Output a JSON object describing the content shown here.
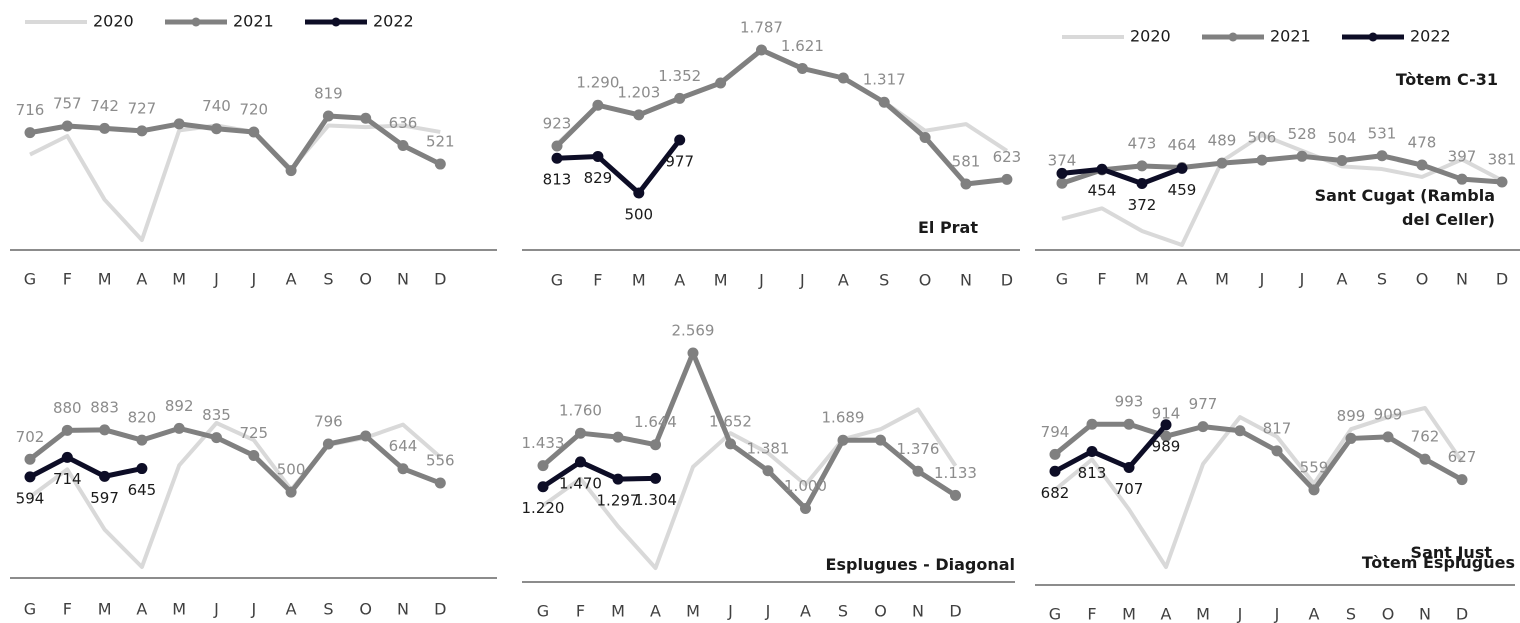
{
  "chart_data": [
    {
      "type": "line",
      "title": "Sant Cugat (Rambla del Celler)",
      "legend": true,
      "categories": [
        "G",
        "F",
        "M",
        "A",
        "M",
        "J",
        "J",
        "A",
        "S",
        "O",
        "N",
        "D"
      ],
      "series": [
        {
          "name": "2020",
          "color": "#d9d9d9",
          "values": [
            580,
            695,
            300,
            50,
            730,
            760,
            720,
            490,
            760,
            750,
            760,
            720
          ]
        },
        {
          "name": "2021",
          "color": "#808080",
          "values": [
            716,
            757,
            742,
            727,
            770,
            740,
            720,
            480,
            819,
            805,
            636,
            521
          ],
          "value_labels": [
            "716",
            "757",
            "742",
            "727",
            null,
            "740",
            "720",
            null,
            "819",
            null,
            "636",
            "521"
          ]
        },
        {
          "name": "2022",
          "color": "#0d0d26",
          "values": [
            null,
            null,
            null,
            null,
            null,
            null,
            null,
            null,
            null,
            null,
            null,
            null
          ]
        }
      ]
    },
    {
      "type": "line",
      "title": "El Prat",
      "legend": false,
      "categories": [
        "G",
        "F",
        "M",
        "A",
        "M",
        "J",
        "J",
        "A",
        "S",
        "O",
        "N",
        "D"
      ],
      "series": [
        {
          "name": "2020",
          "color": "#d9d9d9",
          "values": [
            940,
            1290,
            1200,
            1350,
            1490,
            1787,
            1621,
            1535,
            1320,
            1060,
            1120,
            880
          ]
        },
        {
          "name": "2021",
          "color": "#808080",
          "values": [
            923,
            1290,
            1203,
            1352,
            1490,
            1787,
            1621,
            1535,
            1317,
            1000,
            581,
            623
          ],
          "value_labels": [
            "923",
            "1.290",
            "1.203",
            "1.352",
            null,
            "1.787",
            "1.621",
            null,
            "1.317",
            null,
            "581",
            "623"
          ]
        },
        {
          "name": "2022",
          "color": "#0d0d26",
          "values": [
            813,
            829,
            500,
            977,
            null,
            null,
            null,
            null,
            null,
            null,
            null,
            null
          ],
          "value_labels": [
            "813",
            "829",
            "500",
            "977",
            null,
            null,
            null,
            null,
            null,
            null,
            null,
            null
          ]
        }
      ]
    },
    {
      "type": "line",
      "title": "Tòtem C-31",
      "legend": true,
      "categories": [
        "G",
        "F",
        "M",
        "A",
        "M",
        "J",
        "J",
        "A",
        "S",
        "O",
        "N",
        "D"
      ],
      "series": [
        {
          "name": "2020",
          "color": "#d9d9d9",
          "values": [
            170,
            230,
            100,
            20,
            500,
            650,
            560,
            470,
            455,
            410,
            510,
            390
          ]
        },
        {
          "name": "2021",
          "color": "#808080",
          "values": [
            374,
            450,
            473,
            464,
            489,
            506,
            528,
            504,
            531,
            478,
            397,
            381
          ],
          "value_labels": [
            "374",
            null,
            "473",
            "464",
            "489",
            "506",
            "528",
            "504",
            "531",
            "478",
            "397",
            "381"
          ]
        },
        {
          "name": "2022",
          "color": "#0d0d26",
          "values": [
            430,
            454,
            372,
            459,
            null,
            null,
            null,
            null,
            null,
            null,
            null,
            null
          ],
          "value_labels": [
            null,
            "454",
            "372",
            "459",
            null,
            null,
            null,
            null,
            null,
            null,
            null,
            null
          ]
        }
      ]
    },
    {
      "type": "line",
      "title": "Sant Just",
      "legend": false,
      "categories": [
        "G",
        "F",
        "M",
        "A",
        "M",
        "J",
        "J",
        "A",
        "S",
        "O",
        "N",
        "D"
      ],
      "series": [
        {
          "name": "2020",
          "color": "#d9d9d9",
          "values": [
            470,
            640,
            270,
            40,
            665,
            925,
            820,
            515,
            790,
            835,
            915,
            715
          ]
        },
        {
          "name": "2021",
          "color": "#808080",
          "values": [
            702,
            880,
            883,
            820,
            892,
            835,
            725,
            500,
            796,
            845,
            644,
            556
          ],
          "value_labels": [
            "702",
            "880",
            "883",
            "820",
            "892",
            "835",
            "725",
            "500",
            "796",
            null,
            "644",
            "556"
          ]
        },
        {
          "name": "2022",
          "color": "#0d0d26",
          "values": [
            594,
            714,
            597,
            645,
            null,
            null,
            null,
            null,
            null,
            null,
            null,
            null
          ],
          "value_labels": [
            "594",
            "714",
            "597",
            "645",
            null,
            null,
            null,
            null,
            null,
            null,
            null,
            null
          ]
        }
      ]
    },
    {
      "type": "line",
      "title": "Esplugues - Diagonal",
      "legend": false,
      "categories": [
        "G",
        "F",
        "M",
        "A",
        "M",
        "J",
        "J",
        "A",
        "S",
        "O",
        "N",
        "D"
      ],
      "series": [
        {
          "name": "2020",
          "color": "#d9d9d9",
          "values": [
            1030,
            1300,
            820,
            400,
            1420,
            1760,
            1560,
            1240,
            1700,
            1800,
            2000,
            1430
          ]
        },
        {
          "name": "2021",
          "color": "#808080",
          "values": [
            1433,
            1760,
            1720,
            1644,
            2569,
            1652,
            1381,
            1000,
            1689,
            1690,
            1376,
            1133
          ],
          "value_labels": [
            "1.433",
            "1.760",
            null,
            "1.644",
            "2.569",
            "1.652",
            "1.381",
            "1.000",
            "1.689",
            null,
            "1.376",
            "1.133"
          ]
        },
        {
          "name": "2022",
          "color": "#0d0d26",
          "values": [
            1220,
            1470,
            1297,
            1304,
            null,
            null,
            null,
            null,
            null,
            null,
            null,
            null
          ],
          "value_labels": [
            "1.220",
            "1.470",
            "1.297",
            "1.304",
            null,
            null,
            null,
            null,
            null,
            null,
            null,
            null
          ]
        }
      ]
    },
    {
      "type": "line",
      "title": "Tòtem Esplugues",
      "legend": false,
      "categories": [
        "G",
        "F",
        "M",
        "A",
        "M",
        "J",
        "J",
        "A",
        "S",
        "O",
        "N",
        "D"
      ],
      "series": [
        {
          "name": "2020",
          "color": "#d9d9d9",
          "values": [
            560,
            760,
            430,
            50,
            730,
            1040,
            910,
            600,
            960,
            1040,
            1100,
            745
          ]
        },
        {
          "name": "2021",
          "color": "#808080",
          "values": [
            794,
            993,
            993,
            914,
            977,
            950,
            817,
            559,
            899,
            909,
            762,
            627
          ],
          "value_labels": [
            "794",
            null,
            "993",
            "914",
            "977",
            null,
            "817",
            "559",
            "899",
            "909",
            "762",
            "627"
          ]
        },
        {
          "name": "2022",
          "color": "#0d0d26",
          "values": [
            682,
            813,
            707,
            989,
            null,
            null,
            null,
            null,
            null,
            null,
            null,
            null
          ],
          "value_labels": [
            "682",
            "813",
            "707",
            "989",
            null,
            null,
            null,
            null,
            null,
            null,
            null,
            null
          ]
        }
      ]
    }
  ]
}
